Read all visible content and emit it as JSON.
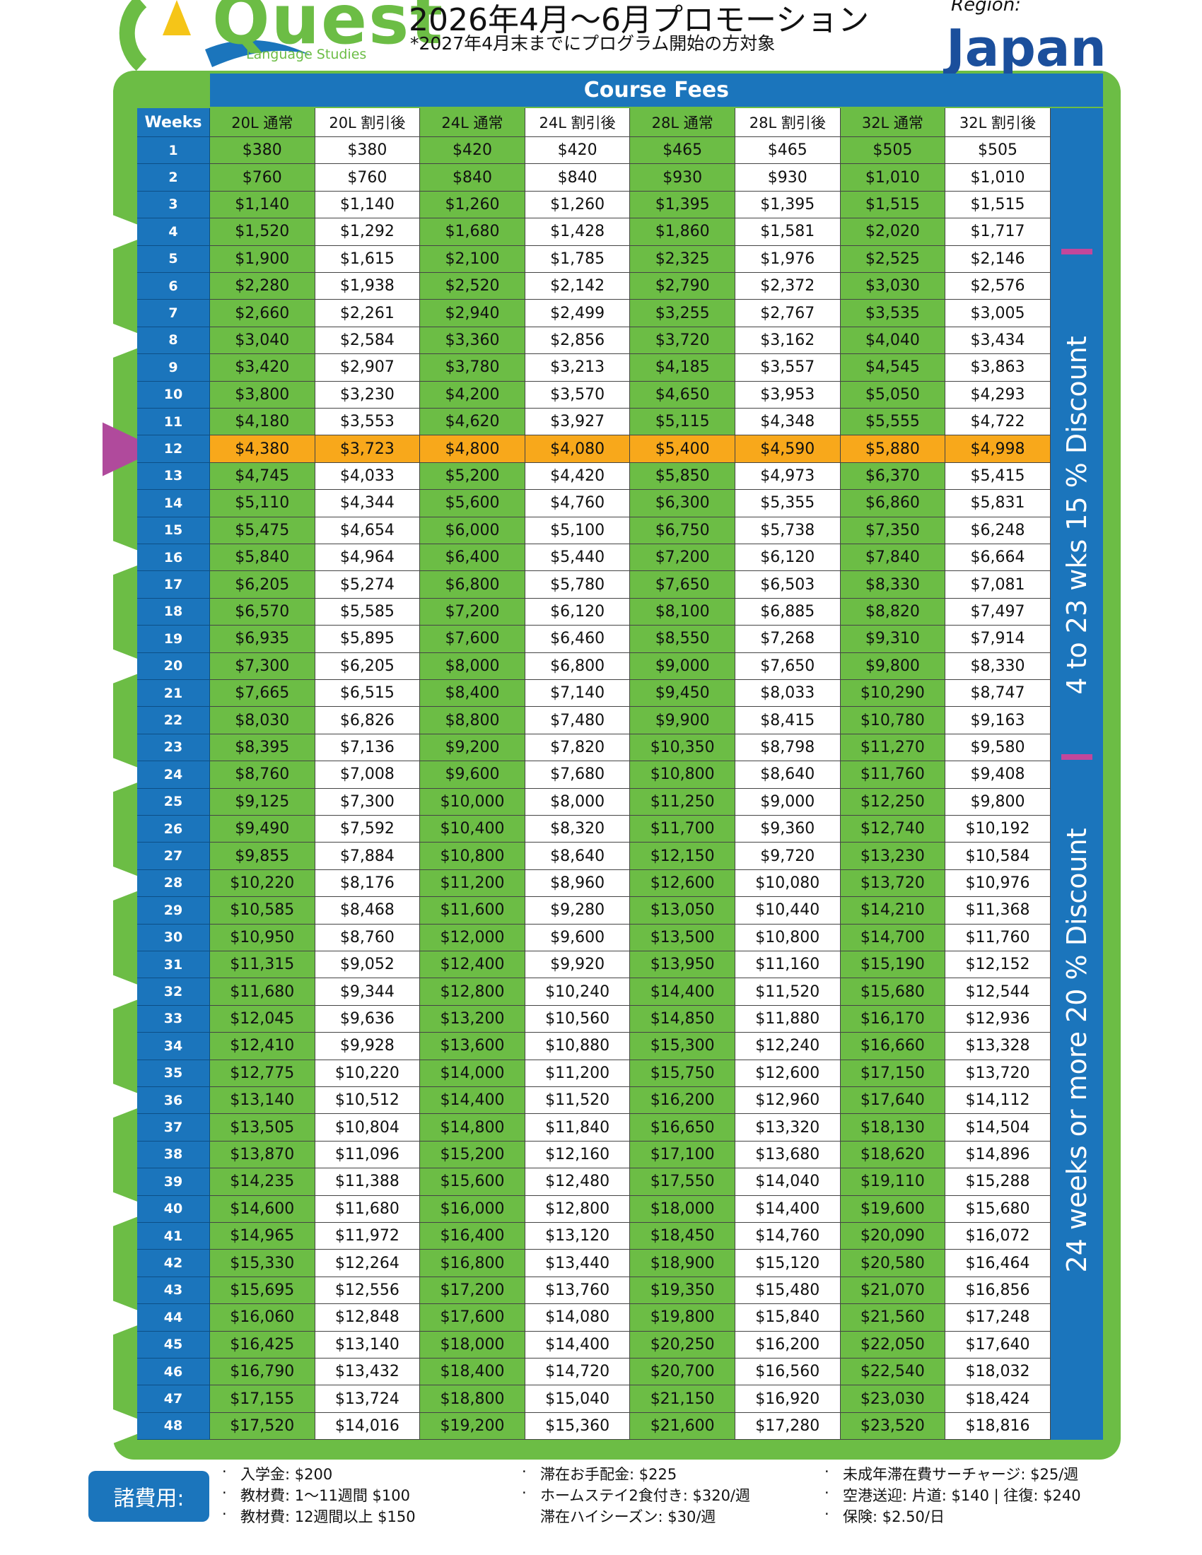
{
  "header": {
    "logo": "Quest",
    "logo_sub": "Language Studies",
    "title": "2026年4月～6月プロモーション",
    "subtitle": "*2027年4月末までにプログラム開始の方対象",
    "region_label": "Region:",
    "region": "Japan"
  },
  "table": {
    "title": "Course Fees",
    "weeks_header": "Weeks",
    "columns": [
      "20L 通常",
      "20L 割引後",
      "24L 通常",
      "24L 割引後",
      "28L 通常",
      "28L 割引後",
      "32L 通常",
      "32L 割引後"
    ],
    "rows": [
      [
        "1",
        "$380",
        "$380",
        "$420",
        "$420",
        "$465",
        "$465",
        "$505",
        "$505"
      ],
      [
        "2",
        "$760",
        "$760",
        "$840",
        "$840",
        "$930",
        "$930",
        "$1,010",
        "$1,010"
      ],
      [
        "3",
        "$1,140",
        "$1,140",
        "$1,260",
        "$1,260",
        "$1,395",
        "$1,395",
        "$1,515",
        "$1,515"
      ],
      [
        "4",
        "$1,520",
        "$1,292",
        "$1,680",
        "$1,428",
        "$1,860",
        "$1,581",
        "$2,020",
        "$1,717"
      ],
      [
        "5",
        "$1,900",
        "$1,615",
        "$2,100",
        "$1,785",
        "$2,325",
        "$1,976",
        "$2,525",
        "$2,146"
      ],
      [
        "6",
        "$2,280",
        "$1,938",
        "$2,520",
        "$2,142",
        "$2,790",
        "$2,372",
        "$3,030",
        "$2,576"
      ],
      [
        "7",
        "$2,660",
        "$2,261",
        "$2,940",
        "$2,499",
        "$3,255",
        "$2,767",
        "$3,535",
        "$3,005"
      ],
      [
        "8",
        "$3,040",
        "$2,584",
        "$3,360",
        "$2,856",
        "$3,720",
        "$3,162",
        "$4,040",
        "$3,434"
      ],
      [
        "9",
        "$3,420",
        "$2,907",
        "$3,780",
        "$3,213",
        "$4,185",
        "$3,557",
        "$4,545",
        "$3,863"
      ],
      [
        "10",
        "$3,800",
        "$3,230",
        "$4,200",
        "$3,570",
        "$4,650",
        "$3,953",
        "$5,050",
        "$4,293"
      ],
      [
        "11",
        "$4,180",
        "$3,553",
        "$4,620",
        "$3,927",
        "$5,115",
        "$4,348",
        "$5,555",
        "$4,722"
      ],
      [
        "12",
        "$4,380",
        "$3,723",
        "$4,800",
        "$4,080",
        "$5,400",
        "$4,590",
        "$5,880",
        "$4,998"
      ],
      [
        "13",
        "$4,745",
        "$4,033",
        "$5,200",
        "$4,420",
        "$5,850",
        "$4,973",
        "$6,370",
        "$5,415"
      ],
      [
        "14",
        "$5,110",
        "$4,344",
        "$5,600",
        "$4,760",
        "$6,300",
        "$5,355",
        "$6,860",
        "$5,831"
      ],
      [
        "15",
        "$5,475",
        "$4,654",
        "$6,000",
        "$5,100",
        "$6,750",
        "$5,738",
        "$7,350",
        "$6,248"
      ],
      [
        "16",
        "$5,840",
        "$4,964",
        "$6,400",
        "$5,440",
        "$7,200",
        "$6,120",
        "$7,840",
        "$6,664"
      ],
      [
        "17",
        "$6,205",
        "$5,274",
        "$6,800",
        "$5,780",
        "$7,650",
        "$6,503",
        "$8,330",
        "$7,081"
      ],
      [
        "18",
        "$6,570",
        "$5,585",
        "$7,200",
        "$6,120",
        "$8,100",
        "$6,885",
        "$8,820",
        "$7,497"
      ],
      [
        "19",
        "$6,935",
        "$5,895",
        "$7,600",
        "$6,460",
        "$8,550",
        "$7,268",
        "$9,310",
        "$7,914"
      ],
      [
        "20",
        "$7,300",
        "$6,205",
        "$8,000",
        "$6,800",
        "$9,000",
        "$7,650",
        "$9,800",
        "$8,330"
      ],
      [
        "21",
        "$7,665",
        "$6,515",
        "$8,400",
        "$7,140",
        "$9,450",
        "$8,033",
        "$10,290",
        "$8,747"
      ],
      [
        "22",
        "$8,030",
        "$6,826",
        "$8,800",
        "$7,480",
        "$9,900",
        "$8,415",
        "$10,780",
        "$9,163"
      ],
      [
        "23",
        "$8,395",
        "$7,136",
        "$9,200",
        "$7,820",
        "$10,350",
        "$8,798",
        "$11,270",
        "$9,580"
      ],
      [
        "24",
        "$8,760",
        "$7,008",
        "$9,600",
        "$7,680",
        "$10,800",
        "$8,640",
        "$11,760",
        "$9,408"
      ],
      [
        "25",
        "$9,125",
        "$7,300",
        "$10,000",
        "$8,000",
        "$11,250",
        "$9,000",
        "$12,250",
        "$9,800"
      ],
      [
        "26",
        "$9,490",
        "$7,592",
        "$10,400",
        "$8,320",
        "$11,700",
        "$9,360",
        "$12,740",
        "$10,192"
      ],
      [
        "27",
        "$9,855",
        "$7,884",
        "$10,800",
        "$8,640",
        "$12,150",
        "$9,720",
        "$13,230",
        "$10,584"
      ],
      [
        "28",
        "$10,220",
        "$8,176",
        "$11,200",
        "$8,960",
        "$12,600",
        "$10,080",
        "$13,720",
        "$10,976"
      ],
      [
        "29",
        "$10,585",
        "$8,468",
        "$11,600",
        "$9,280",
        "$13,050",
        "$10,440",
        "$14,210",
        "$11,368"
      ],
      [
        "30",
        "$10,950",
        "$8,760",
        "$12,000",
        "$9,600",
        "$13,500",
        "$10,800",
        "$14,700",
        "$11,760"
      ],
      [
        "31",
        "$11,315",
        "$9,052",
        "$12,400",
        "$9,920",
        "$13,950",
        "$11,160",
        "$15,190",
        "$12,152"
      ],
      [
        "32",
        "$11,680",
        "$9,344",
        "$12,800",
        "$10,240",
        "$14,400",
        "$11,520",
        "$15,680",
        "$12,544"
      ],
      [
        "33",
        "$12,045",
        "$9,636",
        "$13,200",
        "$10,560",
        "$14,850",
        "$11,880",
        "$16,170",
        "$12,936"
      ],
      [
        "34",
        "$12,410",
        "$9,928",
        "$13,600",
        "$10,880",
        "$15,300",
        "$12,240",
        "$16,660",
        "$13,328"
      ],
      [
        "35",
        "$12,775",
        "$10,220",
        "$14,000",
        "$11,200",
        "$15,750",
        "$12,600",
        "$17,150",
        "$13,720"
      ],
      [
        "36",
        "$13,140",
        "$10,512",
        "$14,400",
        "$11,520",
        "$16,200",
        "$12,960",
        "$17,640",
        "$14,112"
      ],
      [
        "37",
        "$13,505",
        "$10,804",
        "$14,800",
        "$11,840",
        "$16,650",
        "$13,320",
        "$18,130",
        "$14,504"
      ],
      [
        "38",
        "$13,870",
        "$11,096",
        "$15,200",
        "$12,160",
        "$17,100",
        "$13,680",
        "$18,620",
        "$14,896"
      ],
      [
        "39",
        "$14,235",
        "$11,388",
        "$15,600",
        "$12,480",
        "$17,550",
        "$14,040",
        "$19,110",
        "$15,288"
      ],
      [
        "40",
        "$14,600",
        "$11,680",
        "$16,000",
        "$12,800",
        "$18,000",
        "$14,400",
        "$19,600",
        "$15,680"
      ],
      [
        "41",
        "$14,965",
        "$11,972",
        "$16,400",
        "$13,120",
        "$18,450",
        "$14,760",
        "$20,090",
        "$16,072"
      ],
      [
        "42",
        "$15,330",
        "$12,264",
        "$16,800",
        "$13,440",
        "$18,900",
        "$15,120",
        "$20,580",
        "$16,464"
      ],
      [
        "43",
        "$15,695",
        "$12,556",
        "$17,200",
        "$13,760",
        "$19,350",
        "$15,480",
        "$21,070",
        "$16,856"
      ],
      [
        "44",
        "$16,060",
        "$12,848",
        "$17,600",
        "$14,080",
        "$19,800",
        "$15,840",
        "$21,560",
        "$17,248"
      ],
      [
        "45",
        "$16,425",
        "$13,140",
        "$18,000",
        "$14,400",
        "$20,250",
        "$16,200",
        "$22,050",
        "$17,640"
      ],
      [
        "46",
        "$16,790",
        "$13,432",
        "$18,400",
        "$14,720",
        "$20,700",
        "$16,560",
        "$22,540",
        "$18,032"
      ],
      [
        "47",
        "$17,155",
        "$13,724",
        "$18,800",
        "$15,040",
        "$21,150",
        "$16,920",
        "$23,030",
        "$18,424"
      ],
      [
        "48",
        "$17,520",
        "$14,016",
        "$19,200",
        "$15,360",
        "$21,600",
        "$17,280",
        "$23,520",
        "$18,816"
      ]
    ],
    "side_labels": [
      "4 to 23 wks 15 % Discount",
      "24 weeks or more 20 % Discount"
    ]
  },
  "footer": {
    "label": "諸費用:",
    "columns": [
      [
        "入学金: $200",
        "教材費: 1～11週間 $100",
        "教材費: 12週間以上 $150"
      ],
      [
        "滞在お手配金: $225",
        "ホームステイ2食付き: $320/週",
        "滞在ハイシーズン: $30/週"
      ],
      [
        "未成年滞在費サーチャージ: $25/週",
        "空港送迎: 片道: $140 | 往復: $240",
        "保険: $2.50/日"
      ]
    ]
  }
}
